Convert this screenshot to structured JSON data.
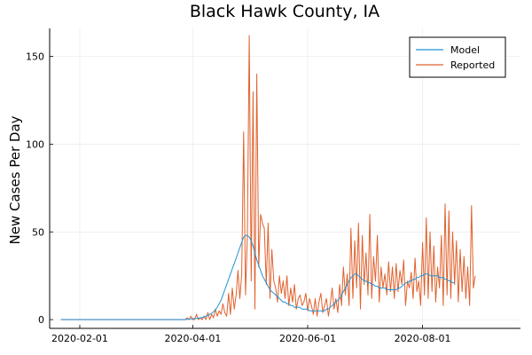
{
  "chart_data": {
    "type": "line",
    "title": "Black Hawk County, IA",
    "xlabel": "",
    "ylabel": "New Cases Per Day",
    "x_start": "2020-01-22",
    "xlim": [
      "2020-01-16",
      "2020-09-22"
    ],
    "ylim": [
      -5,
      166
    ],
    "yticks": [
      0,
      50,
      100,
      150
    ],
    "xticks": [
      "2020-02-01",
      "2020-04-01",
      "2020-06-01",
      "2020-08-01"
    ],
    "grid": true,
    "legend_position": "top-right",
    "colors": {
      "Model": "#1f94d6",
      "Reported": "#e0612d"
    },
    "series": [
      {
        "name": "Model",
        "values": [
          0,
          0,
          0,
          0,
          0,
          0,
          0,
          0,
          0,
          0,
          0,
          0,
          0,
          0,
          0,
          0,
          0,
          0,
          0,
          0,
          0,
          0,
          0,
          0,
          0,
          0,
          0,
          0,
          0,
          0,
          0,
          0,
          0,
          0,
          0,
          0,
          0,
          0,
          0,
          0,
          0,
          0,
          0,
          0,
          0,
          0,
          0,
          0,
          0,
          0,
          0,
          0,
          0,
          0,
          0,
          0,
          0,
          0,
          0,
          0,
          0,
          0,
          0,
          0,
          0,
          0,
          0,
          0.2,
          0.3,
          0.4,
          0.5,
          0.6,
          0.7,
          0.8,
          1,
          1.2,
          1.5,
          2,
          2.5,
          3,
          3.5,
          4.5,
          5.5,
          7,
          9,
          11,
          14,
          17,
          20,
          23,
          26,
          29,
          32,
          35,
          38,
          41,
          44,
          47,
          48,
          48,
          47,
          45,
          42,
          38,
          34,
          31,
          28,
          25,
          23,
          21,
          19,
          17,
          16,
          15,
          14,
          13,
          12,
          11,
          10,
          10,
          9,
          9,
          8,
          8,
          7,
          7,
          7,
          7,
          6,
          6,
          6,
          6,
          5,
          5,
          5,
          5,
          5,
          5,
          5,
          5,
          5,
          6,
          6,
          7,
          8,
          9,
          10,
          11,
          12,
          14,
          16,
          18,
          20,
          22,
          24,
          25,
          26,
          26,
          25,
          24,
          23,
          22,
          22,
          21,
          21,
          20,
          20,
          19,
          19,
          18,
          18,
          18,
          18,
          17,
          17,
          17,
          17,
          17,
          17,
          18,
          18,
          19,
          20,
          21,
          21,
          22,
          22,
          23,
          23,
          24,
          24,
          25,
          25,
          26,
          26,
          26,
          25,
          25,
          25,
          25,
          25,
          24,
          24,
          24,
          23,
          23,
          22,
          22,
          21,
          21
        ]
      },
      {
        "name": "Reported",
        "values": [
          0,
          0,
          0,
          0,
          0,
          0,
          0,
          0,
          0,
          0,
          0,
          0,
          0,
          0,
          0,
          0,
          0,
          0,
          0,
          0,
          0,
          0,
          0,
          0,
          0,
          0,
          0,
          0,
          0,
          0,
          0,
          0,
          0,
          0,
          0,
          0,
          0,
          0,
          0,
          0,
          0,
          0,
          0,
          0,
          0,
          0,
          0,
          0,
          0,
          0,
          0,
          0,
          0,
          0,
          0,
          0,
          0,
          0,
          0,
          0,
          0,
          0,
          0,
          0,
          0,
          0,
          0,
          1,
          0,
          2,
          0,
          0,
          3,
          0,
          1,
          0,
          2,
          0,
          4,
          0,
          3,
          1,
          6,
          2,
          5,
          3,
          9,
          4,
          2,
          15,
          3,
          18,
          6,
          14,
          28,
          12,
          26,
          107,
          14,
          48,
          162,
          22,
          130,
          6,
          140,
          30,
          60,
          55,
          52,
          20,
          55,
          12,
          40,
          22,
          18,
          10,
          25,
          15,
          22,
          12,
          25,
          8,
          18,
          10,
          20,
          6,
          12,
          14,
          8,
          10,
          15,
          5,
          12,
          8,
          3,
          12,
          2,
          10,
          15,
          4,
          8,
          12,
          2,
          9,
          18,
          6,
          12,
          4,
          20,
          8,
          30,
          14,
          26,
          8,
          52,
          12,
          45,
          18,
          55,
          6,
          48,
          20,
          38,
          14,
          60,
          12,
          36,
          22,
          48,
          10,
          30,
          18,
          26,
          14,
          33,
          16,
          30,
          12,
          32,
          16,
          28,
          20,
          34,
          8,
          22,
          18,
          27,
          12,
          35,
          16,
          22,
          8,
          44,
          14,
          58,
          12,
          50,
          16,
          42,
          10,
          30,
          18,
          48,
          8,
          66,
          14,
          62,
          12,
          50,
          20,
          45,
          10,
          40,
          16,
          36,
          12,
          30,
          8,
          65,
          18,
          25
        ]
      }
    ]
  }
}
